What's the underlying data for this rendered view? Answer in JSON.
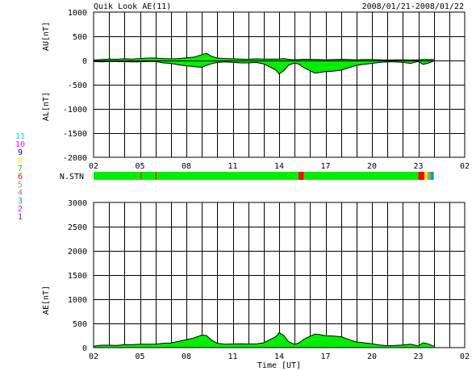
{
  "header": {
    "title": "Quik Look AE(11)",
    "date_range": "2008/01/21-2008/01/22"
  },
  "colors": {
    "fill": "#00ee00",
    "outline": "#000000",
    "marker": "#ff0000"
  },
  "station_legend": [
    {
      "count": "11",
      "color": "#00e0e0"
    },
    {
      "count": "10",
      "color": "#ff00ff"
    },
    {
      "count": "9",
      "color": "#0000cc"
    },
    {
      "count": "8",
      "color": "#ffee00"
    },
    {
      "count": "7",
      "color": "#00dd00"
    },
    {
      "count": "6",
      "color": "#ff0000"
    },
    {
      "count": "5",
      "color": "#999999"
    },
    {
      "count": "4",
      "color": "#888888"
    },
    {
      "count": "3",
      "color": "#00a0a0"
    },
    {
      "count": "2",
      "color": "#ee00ee"
    },
    {
      "count": "1",
      "color": "#3333ff"
    }
  ],
  "chart_data": [
    {
      "type": "area",
      "panel": "AU/AL",
      "ylabel_upper": "AU[nT]",
      "ylabel_lower": "AL[nT]",
      "ylim": [
        -2000,
        1000
      ],
      "yticks": [
        "1000",
        "500",
        "0",
        "-500",
        "-1000",
        "-1500",
        "-2000"
      ],
      "xlim": [
        2,
        26
      ],
      "xticks": [
        "02",
        "05",
        "08",
        "11",
        "14",
        "17",
        "20",
        "23",
        "02"
      ],
      "grid": true,
      "x": [
        2.0,
        2.5,
        3.0,
        3.5,
        4.0,
        4.5,
        5.0,
        5.5,
        6.0,
        6.5,
        7.0,
        7.5,
        8.0,
        8.5,
        9.0,
        9.3,
        9.6,
        10.0,
        10.5,
        11.0,
        11.5,
        12.0,
        12.5,
        13.0,
        13.5,
        13.8,
        14.0,
        14.3,
        14.6,
        15.0,
        15.3,
        15.6,
        16.0,
        16.3,
        16.6,
        17.0,
        17.5,
        18.0,
        18.5,
        19.0,
        19.5,
        20.0,
        20.5,
        21.0,
        21.5,
        22.0,
        22.5,
        23.0,
        23.3,
        23.6,
        24.0
      ],
      "au": [
        10,
        20,
        30,
        25,
        35,
        30,
        40,
        50,
        50,
        40,
        35,
        40,
        55,
        70,
        120,
        150,
        90,
        50,
        40,
        35,
        30,
        25,
        35,
        30,
        30,
        30,
        30,
        40,
        25,
        15,
        20,
        25,
        25,
        20,
        20,
        15,
        20,
        25,
        20,
        15,
        20,
        20,
        15,
        10,
        15,
        15,
        10,
        15,
        20,
        20,
        20
      ],
      "al": [
        -20,
        -30,
        -20,
        -20,
        -25,
        -30,
        -30,
        -20,
        -20,
        -50,
        -60,
        -90,
        -110,
        -130,
        -140,
        -100,
        -70,
        -40,
        -30,
        -40,
        -50,
        -50,
        -40,
        -70,
        -150,
        -200,
        -280,
        -210,
        -100,
        -50,
        -80,
        -150,
        -210,
        -260,
        -250,
        -230,
        -220,
        -200,
        -150,
        -100,
        -80,
        -60,
        -40,
        -30,
        -30,
        -40,
        -60,
        -20,
        -80,
        -60,
        -10
      ]
    },
    {
      "type": "area",
      "panel": "AE",
      "ylabel": "AE[nT]",
      "xlabel": "Time [UT]",
      "ylim": [
        0,
        3000
      ],
      "yticks": [
        "3000",
        "2500",
        "2000",
        "1500",
        "1000",
        "500",
        "0"
      ],
      "xlim": [
        2,
        26
      ],
      "xticks": [
        "02",
        "05",
        "08",
        "11",
        "14",
        "17",
        "20",
        "23",
        "02"
      ],
      "grid": true,
      "x": [
        2.0,
        2.5,
        3.0,
        3.5,
        4.0,
        4.5,
        5.0,
        5.5,
        6.0,
        6.5,
        7.0,
        7.5,
        8.0,
        8.5,
        9.0,
        9.3,
        9.6,
        10.0,
        10.5,
        11.0,
        11.5,
        12.0,
        12.5,
        13.0,
        13.5,
        13.8,
        14.0,
        14.3,
        14.6,
        15.0,
        15.3,
        15.6,
        16.0,
        16.3,
        16.6,
        17.0,
        17.5,
        18.0,
        18.5,
        19.0,
        19.5,
        20.0,
        20.5,
        21.0,
        21.5,
        22.0,
        22.5,
        23.0,
        23.3,
        23.6,
        24.0
      ],
      "values": [
        30,
        50,
        50,
        45,
        60,
        60,
        70,
        70,
        70,
        90,
        95,
        130,
        165,
        200,
        260,
        250,
        160,
        90,
        70,
        75,
        80,
        75,
        75,
        100,
        180,
        230,
        310,
        250,
        125,
        65,
        100,
        175,
        235,
        280,
        270,
        245,
        240,
        225,
        170,
        115,
        100,
        80,
        55,
        40,
        45,
        55,
        70,
        35,
        100,
        80,
        30
      ]
    }
  ],
  "nstn": {
    "label": "N.STN",
    "segments": [
      {
        "from": 2.0,
        "to": 5.05,
        "color": "#00ee00"
      },
      {
        "from": 5.05,
        "to": 5.12,
        "color": "#ff0000"
      },
      {
        "from": 5.12,
        "to": 6.0,
        "color": "#00ee00"
      },
      {
        "from": 6.0,
        "to": 6.07,
        "color": "#ff0000"
      },
      {
        "from": 6.07,
        "to": 15.25,
        "color": "#00ee00"
      },
      {
        "from": 15.25,
        "to": 15.6,
        "color": "#ff0000"
      },
      {
        "from": 15.6,
        "to": 23.0,
        "color": "#00ee00"
      },
      {
        "from": 23.0,
        "to": 23.4,
        "color": "#ff0000"
      },
      {
        "from": 23.4,
        "to": 23.6,
        "color": "#ffee00"
      },
      {
        "from": 23.6,
        "to": 23.8,
        "color": "#999999"
      },
      {
        "from": 23.8,
        "to": 24.0,
        "color": "#00a0a0"
      }
    ]
  }
}
